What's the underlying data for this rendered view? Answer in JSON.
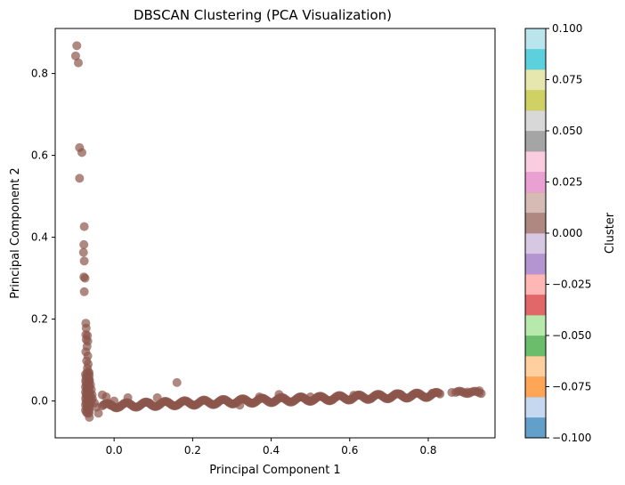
{
  "chart_data": {
    "type": "scatter",
    "title": "DBSCAN Clustering (PCA Visualization)",
    "xlabel": "Principal Component 1",
    "ylabel": "Principal Component 2",
    "xlim": [
      -0.15,
      0.97
    ],
    "ylim": [
      -0.09,
      0.91
    ],
    "xticks": [
      0.0,
      0.2,
      0.4,
      0.6,
      0.8
    ],
    "xtick_labels": [
      "0.0",
      "0.2",
      "0.4",
      "0.6",
      "0.8"
    ],
    "yticks": [
      0.0,
      0.2,
      0.4,
      0.6,
      0.8
    ],
    "ytick_labels": [
      "0.0",
      "0.2",
      "0.4",
      "0.6",
      "0.8"
    ],
    "grid": false,
    "point_color": "#8c564b",
    "point_alpha": 0.7,
    "series": [
      {
        "cluster": 0,
        "points": [
          [
            -0.095,
            0.868
          ],
          [
            -0.098,
            0.843
          ],
          [
            -0.091,
            0.826
          ],
          [
            -0.088,
            0.619
          ],
          [
            -0.082,
            0.607
          ],
          [
            -0.088,
            0.544
          ],
          [
            -0.076,
            0.426
          ],
          [
            -0.077,
            0.382
          ],
          [
            -0.078,
            0.363
          ],
          [
            -0.076,
            0.342
          ],
          [
            -0.077,
            0.303
          ],
          [
            -0.074,
            0.3
          ],
          [
            -0.076,
            0.267
          ],
          [
            -0.072,
            0.19
          ],
          [
            -0.071,
            0.178
          ],
          [
            -0.072,
            0.162
          ],
          [
            -0.068,
            0.16
          ],
          [
            -0.071,
            0.15
          ],
          [
            -0.067,
            0.146
          ],
          [
            -0.069,
            0.133
          ],
          [
            -0.072,
            0.12
          ],
          [
            -0.067,
            0.11
          ],
          [
            -0.07,
            0.098
          ],
          [
            -0.066,
            0.09
          ],
          [
            -0.068,
            0.08
          ],
          [
            -0.064,
            0.07
          ],
          [
            -0.067,
            0.06
          ],
          [
            -0.063,
            0.052
          ],
          [
            -0.066,
            0.045
          ],
          [
            -0.06,
            0.04
          ],
          [
            -0.064,
            0.032
          ],
          [
            -0.058,
            0.028
          ],
          [
            -0.062,
            0.02
          ],
          [
            -0.056,
            0.015
          ],
          [
            -0.06,
            0.01
          ],
          [
            -0.055,
            0.005
          ],
          [
            -0.058,
            0.0
          ],
          [
            -0.05,
            -0.005
          ],
          [
            -0.062,
            -0.01
          ],
          [
            -0.066,
            -0.02
          ],
          [
            -0.064,
            -0.03
          ],
          [
            -0.063,
            -0.04
          ],
          [
            -0.04,
            -0.03
          ],
          [
            -0.045,
            -0.015
          ],
          [
            -0.03,
            0.015
          ],
          [
            -0.02,
            0.01
          ],
          [
            -0.01,
            -0.01
          ],
          [
            0.0,
            0.0
          ],
          [
            0.035,
            0.008
          ],
          [
            0.09,
            -0.005
          ],
          [
            0.11,
            0.008
          ],
          [
            0.16,
            0.045
          ],
          [
            0.32,
            -0.01
          ],
          [
            0.37,
            0.01
          ],
          [
            0.42,
            0.016
          ],
          [
            0.5,
            0.01
          ],
          [
            0.61,
            0.014
          ],
          [
            0.73,
            0.016
          ],
          [
            0.81,
            0.019
          ],
          [
            0.86,
            0.021
          ],
          [
            0.9,
            0.022
          ],
          [
            0.93,
            0.025
          ]
        ],
        "band": {
          "x_range": [
            -0.03,
            0.83
          ],
          "y_at_x_start": -0.012,
          "slope": 0.032,
          "spread": 0.006
        },
        "cluster_x_range": [
          0.87,
          0.935
        ],
        "cluster_y": 0.021
      }
    ],
    "colorbar": {
      "label": "Cluster",
      "range": [
        -0.1,
        0.1
      ],
      "ticks": [
        -0.1,
        -0.075,
        -0.05,
        -0.025,
        0.0,
        0.025,
        0.05,
        0.075,
        0.1
      ],
      "tick_labels": [
        "−0.100",
        "−0.075",
        "−0.050",
        "−0.025",
        "0.000",
        "0.025",
        "0.050",
        "0.075",
        "0.100"
      ],
      "colors": [
        "#1f77b4",
        "#aec7e8",
        "#ff7f0e",
        "#ffbb78",
        "#2ca02c",
        "#98df8a",
        "#d62728",
        "#ff9896",
        "#9467bd",
        "#c5b0d5",
        "#8c564b",
        "#c49c94",
        "#e377c2",
        "#f7b6d2",
        "#7f7f7f",
        "#c7c7c7",
        "#bcbd22",
        "#dbdb8d",
        "#17becf",
        "#9edae5"
      ],
      "alpha": 0.7
    }
  }
}
